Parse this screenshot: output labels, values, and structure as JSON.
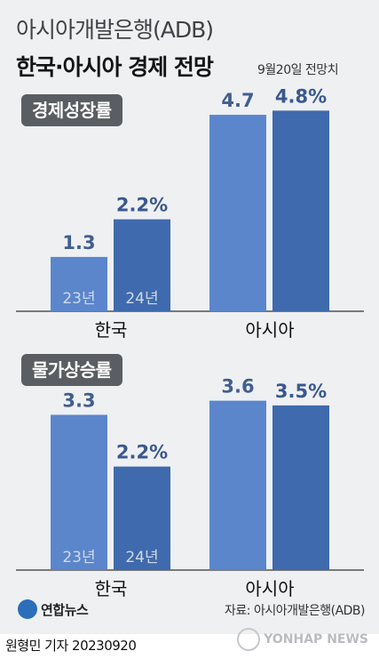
{
  "header": {
    "org": "아시아개발은행(ADB)",
    "title": "한국·아시아 경제 전망",
    "date": "9월20일 전망치"
  },
  "footer": {
    "logo_text": "연합뉴스",
    "source": "자료: 아시아개발은행(ADB)",
    "credit": "원형민 기자  20230920",
    "watermark": "YONHAP NEWS"
  },
  "colors": {
    "bar_23": "#5b86cc",
    "bar_24": "#3f6aad",
    "label_23": "#425e8f",
    "label_24": "#3a5890",
    "in_bar_text": "#cfd9ea",
    "axis": "#333333"
  },
  "chart_data": [
    {
      "type": "bar",
      "title": "경제성장률",
      "categories": [
        "한국",
        "아시아"
      ],
      "series": [
        {
          "name": "23년",
          "values": [
            1.3,
            4.7
          ],
          "labels": [
            "1.3",
            "4.7"
          ]
        },
        {
          "name": "24년",
          "values": [
            2.2,
            4.8
          ],
          "labels": [
            "2.2%",
            "4.8%"
          ]
        }
      ],
      "ylim": [
        0,
        5.0
      ]
    },
    {
      "type": "bar",
      "title": "물가상승률",
      "categories": [
        "한국",
        "아시아"
      ],
      "series": [
        {
          "name": "23년",
          "values": [
            3.3,
            3.6
          ],
          "labels": [
            "3.3",
            "3.6"
          ]
        },
        {
          "name": "24년",
          "values": [
            2.2,
            3.5
          ],
          "labels": [
            "2.2%",
            "3.5%"
          ]
        }
      ],
      "ylim": [
        0,
        3.8
      ]
    }
  ]
}
